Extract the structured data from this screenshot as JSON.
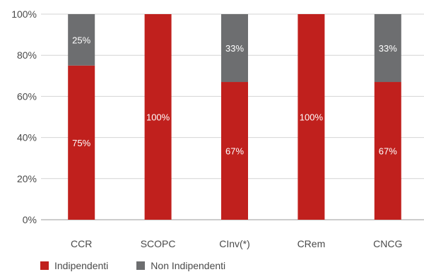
{
  "chart_data": {
    "type": "bar",
    "stacked": true,
    "percent": true,
    "categories": [
      "CCR",
      "SCOPC",
      "CInv(*)",
      "CRem",
      "CNCG"
    ],
    "series": [
      {
        "name": "Indipendenti",
        "values": [
          75,
          100,
          67,
          100,
          67
        ],
        "color": "#c0201d",
        "labels": [
          "75%",
          "100%",
          "67%",
          "100%",
          "67%"
        ]
      },
      {
        "name": "Non Indipendenti",
        "values": [
          25,
          0,
          33,
          0,
          33
        ],
        "color": "#6d6e70",
        "labels": [
          "25%",
          "",
          "33%",
          "",
          "33%"
        ]
      }
    ],
    "ylim": [
      0,
      100
    ],
    "yticks": [
      "0%",
      "20%",
      "40%",
      "60%",
      "80%",
      "100%"
    ],
    "grid": true,
    "legend_position": "bottom-left"
  }
}
